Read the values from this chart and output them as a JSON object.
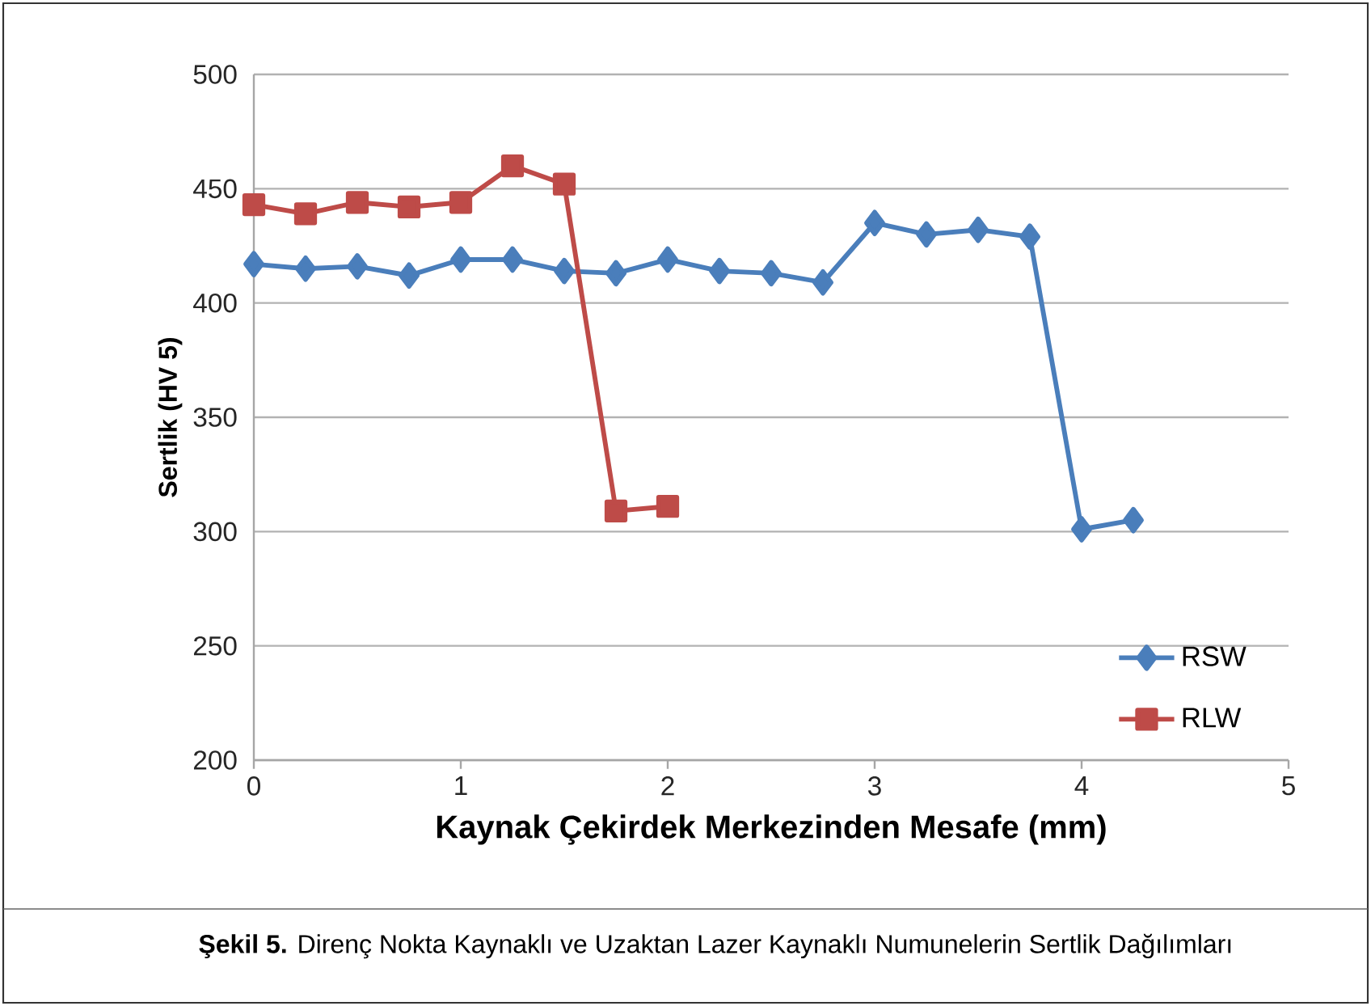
{
  "chart_data": {
    "type": "line",
    "xlabel": "Kaynak Çekirdek Merkezinden Mesafe (mm)",
    "ylabel": "Sertlik (HV 5)",
    "xlim": [
      0,
      5
    ],
    "xticks": [
      0,
      1,
      2,
      3,
      4,
      5
    ],
    "ylim": [
      200,
      500
    ],
    "yticks": [
      200,
      250,
      300,
      350,
      400,
      450,
      500
    ],
    "grid": "y",
    "legend": "bottom right",
    "line_style": "solid",
    "series": [
      {
        "name": "RSW",
        "color": "#4a7ebb",
        "marker": "diamond",
        "x": [
          0,
          0.25,
          0.5,
          0.75,
          1,
          1.25,
          1.5,
          1.75,
          2,
          2.25,
          2.5,
          2.75,
          3,
          3.25,
          3.5,
          3.75,
          4,
          4.25
        ],
        "values": [
          417,
          415,
          416,
          412,
          419,
          419,
          414,
          413,
          419,
          414,
          413,
          409,
          435,
          430,
          432,
          429,
          301,
          305
        ]
      },
      {
        "name": "RLW",
        "color": "#be4b48",
        "marker": "square",
        "x": [
          0,
          0.25,
          0.5,
          0.75,
          1,
          1.25,
          1.5,
          1.75,
          2
        ],
        "values": [
          443,
          439,
          444,
          442,
          444,
          460,
          452,
          309,
          311
        ]
      }
    ],
    "annotations": [
      "**Şekil 5.** Direnç Nokta Kaynaklı ve Uzaktan Lazer Kaynaklı Numunelerin Sertlik Dağılımları"
    ]
  }
}
